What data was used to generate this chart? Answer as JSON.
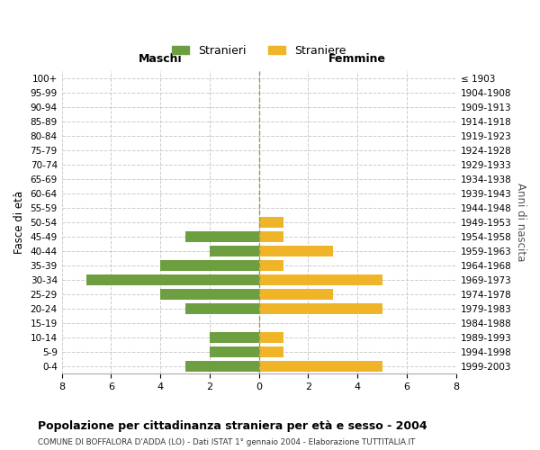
{
  "age_groups": [
    "100+",
    "95-99",
    "90-94",
    "85-89",
    "80-84",
    "75-79",
    "70-74",
    "65-69",
    "60-64",
    "55-59",
    "50-54",
    "45-49",
    "40-44",
    "35-39",
    "30-34",
    "25-29",
    "20-24",
    "15-19",
    "10-14",
    "5-9",
    "0-4"
  ],
  "birth_years": [
    "≤ 1903",
    "1904-1908",
    "1909-1913",
    "1914-1918",
    "1919-1923",
    "1924-1928",
    "1929-1933",
    "1934-1938",
    "1939-1943",
    "1944-1948",
    "1949-1953",
    "1954-1958",
    "1959-1963",
    "1964-1968",
    "1969-1973",
    "1974-1978",
    "1979-1983",
    "1984-1988",
    "1989-1993",
    "1994-1998",
    "1999-2003"
  ],
  "maschi": [
    0,
    0,
    0,
    0,
    0,
    0,
    0,
    0,
    0,
    0,
    0,
    3,
    2,
    4,
    7,
    4,
    3,
    0,
    2,
    2,
    3
  ],
  "femmine": [
    0,
    0,
    0,
    0,
    0,
    0,
    0,
    0,
    0,
    0,
    1,
    1,
    3,
    1,
    5,
    3,
    5,
    0,
    1,
    1,
    5
  ],
  "maschi_color": "#6d9e3f",
  "femmine_color": "#f0b429",
  "bg_color": "#ffffff",
  "grid_color": "#cccccc",
  "title": "Popolazione per cittadinanza straniera per età e sesso - 2004",
  "subtitle": "COMUNE DI BOFFALORA D'ADDA (LO) - Dati ISTAT 1° gennaio 2004 - Elaborazione TUTTITALIA.IT",
  "ylabel_left": "Fasce di età",
  "ylabel_right": "Anni di nascita",
  "xlabel_maschi": "Maschi",
  "xlabel_femmine": "Femmine",
  "legend_stranieri": "Stranieri",
  "legend_straniere": "Straniere",
  "xlim": 8
}
